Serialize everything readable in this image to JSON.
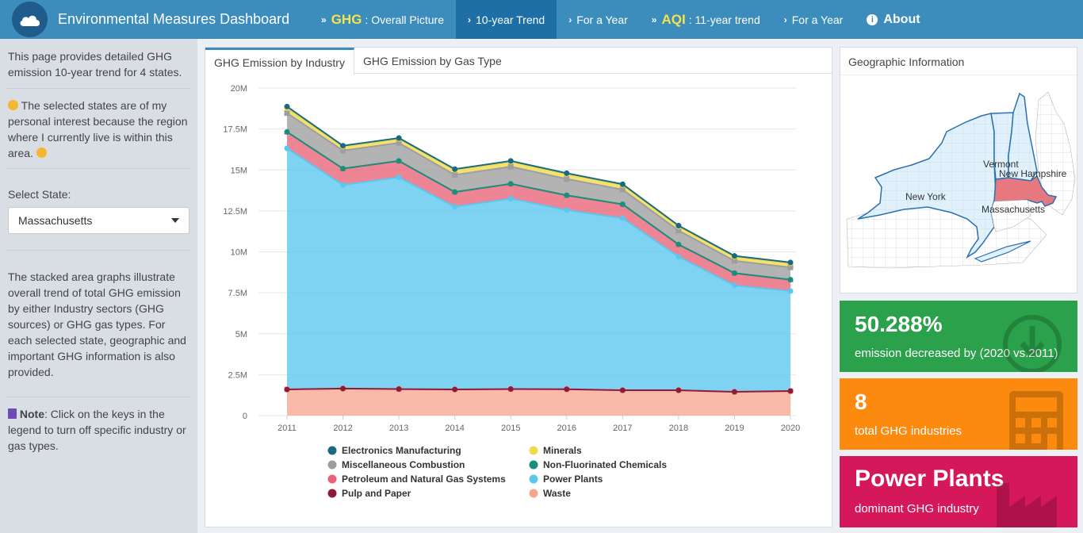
{
  "header": {
    "title": "Environmental Measures Dashboard",
    "nav": [
      {
        "big": "GHG",
        "label": ": Overall Picture",
        "icon": "double-chevron-icon",
        "active": false
      },
      {
        "big": "",
        "label": "10-year Trend",
        "icon": "chevron-right-icon",
        "active": true
      },
      {
        "big": "",
        "label": "For a Year",
        "icon": "chevron-right-icon",
        "active": false
      },
      {
        "big": "AQI",
        "label": ": 11-year trend",
        "icon": "double-chevron-icon",
        "active": false
      },
      {
        "big": "",
        "label": "For a Year",
        "icon": "chevron-right-icon",
        "active": false
      },
      {
        "big": "",
        "label": "About",
        "icon": "info-circle-icon",
        "active": false
      }
    ]
  },
  "sidebar": {
    "intro": "This page provides detailed GHG emission 10-year trend for 4 states.",
    "interest": "The selected states are of my personal interest because the region where I currently live is within this area.",
    "select_label": "Select State:",
    "selected_state": "Massachusetts",
    "desc": "The stacked area graphs illustrate overall trend of total GHG emission by either Industry sectors (GHG sources) or GHG gas types. For each selected state, geographic and important GHG information is also provided.",
    "note_label": "Note",
    "note_text": ": Click on the keys in the legend to turn off specific industry or gas types."
  },
  "main": {
    "tabs": [
      {
        "label": "GHG Emission by Industry",
        "active": true
      },
      {
        "label": "GHG Emission by Gas Type",
        "active": false
      }
    ]
  },
  "chart_data": {
    "type": "area",
    "stacked": true,
    "x": [
      2011,
      2012,
      2013,
      2014,
      2015,
      2016,
      2017,
      2018,
      2019,
      2020
    ],
    "y_ticks": [
      "0",
      "2.5M",
      "5M",
      "7.5M",
      "10M",
      "12.5M",
      "15M",
      "17.5M",
      "20M"
    ],
    "ylim": [
      0,
      20000000
    ],
    "series": [
      {
        "name": "Waste",
        "color": "#f7a58f",
        "marker": "square",
        "values": [
          1600000,
          1650000,
          1620000,
          1600000,
          1620000,
          1610000,
          1550000,
          1550000,
          1450000,
          1500000
        ]
      },
      {
        "name": "Pulp and Paper",
        "color": "#8c1c3c",
        "marker": "circle",
        "values": [
          0,
          0,
          0,
          0,
          0,
          0,
          0,
          0,
          0,
          0
        ]
      },
      {
        "name": "Power Plants",
        "color": "#5bc6ee",
        "marker": "circle",
        "values": [
          14720000,
          12430000,
          12930000,
          11150000,
          11630000,
          10940000,
          10500000,
          8150000,
          6500000,
          6100000
        ]
      },
      {
        "name": "Petroleum and Natural Gas Systems",
        "color": "#e86377",
        "marker": "triangle",
        "values": [
          1000000,
          1000000,
          1000000,
          900000,
          900000,
          900000,
          850000,
          750000,
          750000,
          700000
        ]
      },
      {
        "name": "Non-Fluorinated Chemicals",
        "color": "#1a8f7e",
        "marker": "circle",
        "values": [
          0,
          0,
          0,
          0,
          0,
          0,
          0,
          0,
          0,
          0
        ]
      },
      {
        "name": "Miscellaneous Combustion",
        "color": "#9e9e9e",
        "marker": "square",
        "values": [
          1150000,
          1100000,
          1100000,
          1050000,
          1050000,
          1000000,
          900000,
          850000,
          750000,
          750000
        ]
      },
      {
        "name": "Minerals",
        "color": "#f0d94a",
        "marker": "circle",
        "values": [
          300000,
          250000,
          250000,
          300000,
          300000,
          300000,
          280000,
          250000,
          250000,
          250000
        ]
      },
      {
        "name": "Electronics Manufacturing",
        "color": "#1a6b80",
        "marker": "circle",
        "values": [
          100000,
          50000,
          50000,
          50000,
          50000,
          50000,
          50000,
          50000,
          50000,
          50000
        ]
      }
    ],
    "legend": [
      "Electronics Manufacturing",
      "Minerals",
      "Miscellaneous Combustion",
      "Non-Fluorinated Chemicals",
      "Petroleum and Natural Gas Systems",
      "Power Plants",
      "Pulp and Paper",
      "Waste"
    ]
  },
  "geo": {
    "title": "Geographic Information",
    "states": [
      "New York",
      "Vermont",
      "New Hampshire",
      "Massachusetts"
    ],
    "highlight_color": "#e8787e"
  },
  "value_boxes": [
    {
      "value": "50.288%",
      "subtitle": "emission decreased by (2020 vs.2011)",
      "color": "#2aa14a",
      "icon": "download-circle-icon"
    },
    {
      "value": "8",
      "subtitle": "total GHG industries",
      "color": "#fb8a0e",
      "icon": "calculator-icon"
    },
    {
      "value": "Power Plants",
      "subtitle": "dominant GHG industry",
      "color": "#d5185a",
      "icon": "industry-icon"
    }
  ]
}
